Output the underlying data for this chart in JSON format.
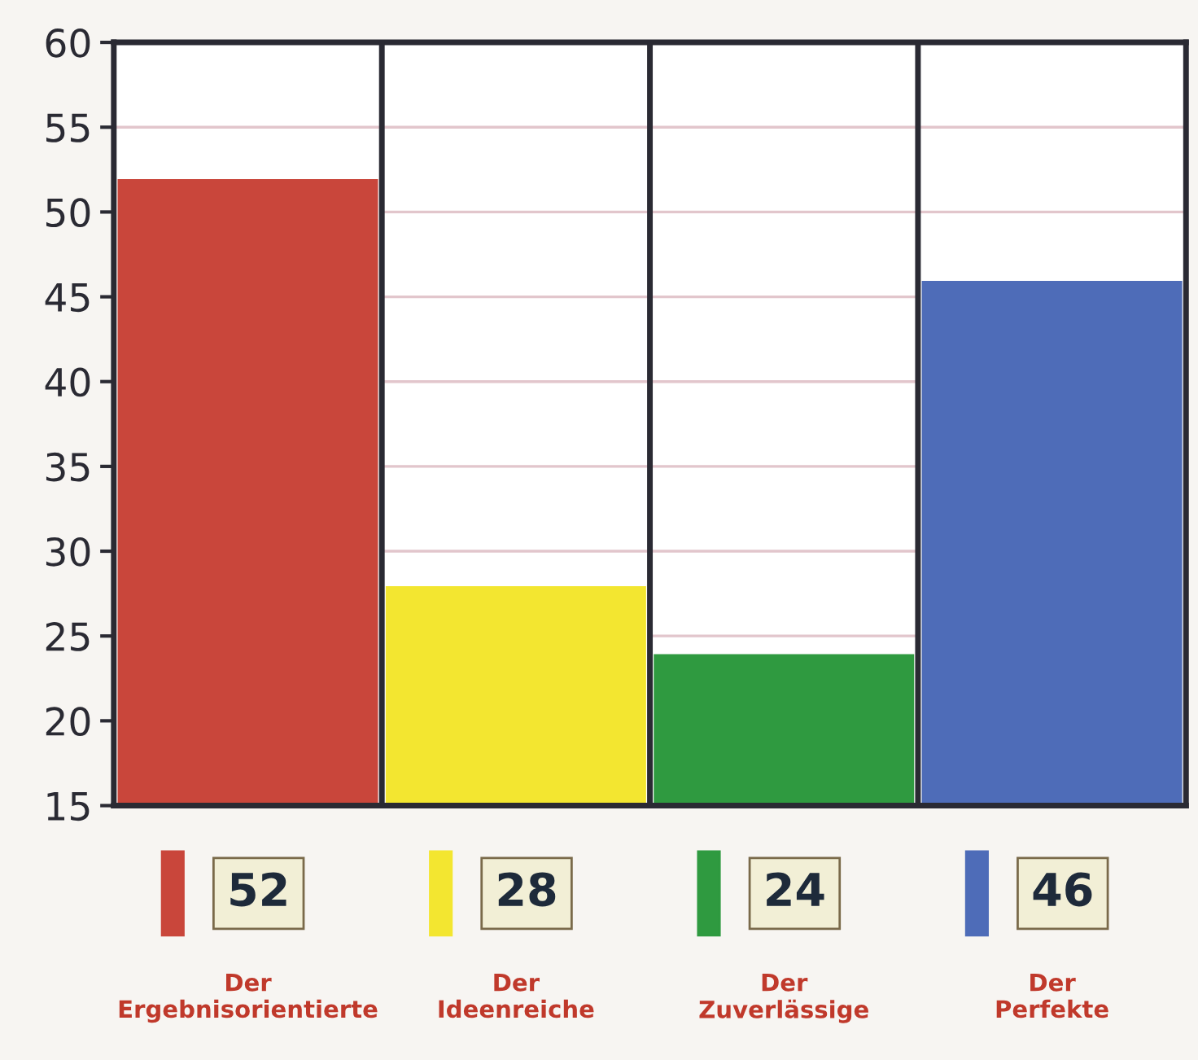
{
  "chart_data": {
    "type": "bar",
    "categories": [
      "Der\nErgebnisorientierte",
      "Der\nIdeenreiche",
      "Der\nZuverlässige",
      "Der\nPerfekte"
    ],
    "values": [
      52,
      28,
      24,
      46
    ],
    "colors": [
      "#c9463b",
      "#f3e630",
      "#2f9a40",
      "#4e6cb8"
    ],
    "ylim": [
      15,
      60
    ],
    "yticks": [
      15,
      20,
      25,
      30,
      35,
      40,
      45,
      50,
      55,
      60
    ],
    "grid": "y",
    "data_labels": true
  }
}
